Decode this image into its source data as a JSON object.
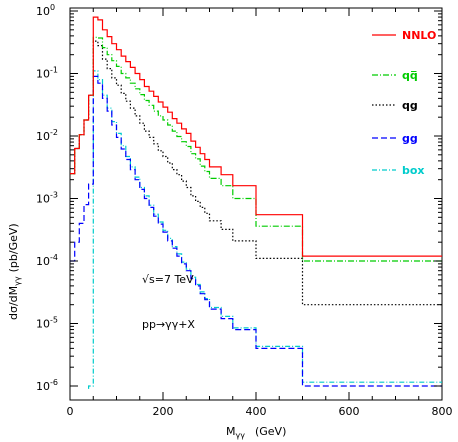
{
  "chart_data": {
    "type": "line",
    "step": true,
    "log_y": true,
    "xlabel": "M",
    "xlabel_sub": "γγ",
    "xlabel_unit": "(GeV)",
    "ylabel": "dσ/dM",
    "ylabel_sub": "γγ",
    "ylabel_unit": "(pb/GeV)",
    "xlim": [
      0,
      800
    ],
    "ylim": [
      5e-07,
      1
    ],
    "x_ticks": [
      {
        "value": 0,
        "label": "0"
      },
      {
        "value": 200,
        "label": "200"
      },
      {
        "value": 400,
        "label": "400"
      },
      {
        "value": 600,
        "label": "600"
      },
      {
        "value": 800,
        "label": "800"
      }
    ],
    "y_ticks": [
      {
        "value": 1e-06,
        "base": "10",
        "exp": "-6"
      },
      {
        "value": 1e-05,
        "base": "10",
        "exp": "-5"
      },
      {
        "value": 0.0001,
        "base": "10",
        "exp": "-4"
      },
      {
        "value": 0.001,
        "base": "10",
        "exp": "-3"
      },
      {
        "value": 0.01,
        "base": "10",
        "exp": "-2"
      },
      {
        "value": 0.1,
        "base": "10",
        "exp": "-1"
      },
      {
        "value": 1,
        "base": "10",
        "exp": "0"
      }
    ],
    "annotations": [
      "√s=7 TeV",
      "pp→γγ+X"
    ],
    "legend_position": "top-right",
    "bin_edges": [
      0,
      10,
      20,
      30,
      40,
      50,
      60,
      70,
      80,
      90,
      100,
      110,
      120,
      130,
      140,
      150,
      160,
      170,
      180,
      190,
      200,
      210,
      220,
      230,
      240,
      250,
      260,
      270,
      280,
      290,
      300,
      325,
      350,
      400,
      500,
      800
    ],
    "series": [
      {
        "name": "NNLO",
        "color": "#ff0000",
        "dash": "",
        "values": [
          0.0025,
          0.0063,
          0.0105,
          0.018,
          0.045,
          0.8,
          0.72,
          0.5,
          0.39,
          0.3,
          0.24,
          0.19,
          0.155,
          0.125,
          0.1,
          0.08,
          0.062,
          0.052,
          0.043,
          0.035,
          0.029,
          0.024,
          0.019,
          0.016,
          0.013,
          0.011,
          0.0083,
          0.0066,
          0.0052,
          0.0042,
          0.0032,
          0.0024,
          0.0016,
          0.00055,
          0.00012
        ]
      },
      {
        "name": "qq̅",
        "color": "#00cc00",
        "dash": "6,2,1,2",
        "values": [
          0.0025,
          0.0063,
          0.0105,
          0.018,
          0.045,
          0.38,
          0.37,
          0.26,
          0.2,
          0.16,
          0.13,
          0.1,
          0.085,
          0.07,
          0.057,
          0.046,
          0.037,
          0.031,
          0.025,
          0.021,
          0.018,
          0.015,
          0.012,
          0.0098,
          0.0081,
          0.0068,
          0.0052,
          0.0043,
          0.0033,
          0.0027,
          0.0021,
          0.0016,
          0.001,
          0.00036,
          0.0001
        ]
      },
      {
        "name": "qg",
        "color": "#000000",
        "dash": "1.5,2",
        "values": [
          0.0025,
          0.0063,
          0.0105,
          0.018,
          0.045,
          0.33,
          0.28,
          0.17,
          0.12,
          0.085,
          0.065,
          0.048,
          0.036,
          0.028,
          0.021,
          0.016,
          0.012,
          0.0095,
          0.0075,
          0.0058,
          0.0047,
          0.0037,
          0.0029,
          0.0024,
          0.0019,
          0.0015,
          0.0011,
          0.0009,
          0.00072,
          0.00058,
          0.00044,
          0.00032,
          0.00021,
          0.00011,
          2e-05
        ]
      },
      {
        "name": "gg",
        "color": "#0000ff",
        "dash": "6,3",
        "values": [
          0.0001,
          0.0002,
          0.0004,
          0.0008,
          0.0017,
          0.09,
          0.07,
          0.04,
          0.025,
          0.015,
          0.0095,
          0.0062,
          0.0042,
          0.0029,
          0.002,
          0.0014,
          0.001,
          0.00072,
          0.00052,
          0.00039,
          0.00029,
          0.00021,
          0.00016,
          0.00012,
          9e-05,
          7e-05,
          5.2e-05,
          4e-05,
          3e-05,
          2.4e-05,
          1.7e-05,
          1.2e-05,
          8e-06,
          4e-06,
          1e-06
        ]
      },
      {
        "name": "box",
        "color": "#00cccc",
        "dash": "5,2,1,2",
        "values": [
          null,
          null,
          null,
          null,
          1e-06,
          0.11,
          0.08,
          0.045,
          0.028,
          0.017,
          0.011,
          0.007,
          0.0047,
          0.0032,
          0.0022,
          0.0015,
          0.0011,
          0.00078,
          0.00056,
          0.00042,
          0.00031,
          0.00023,
          0.00017,
          0.00013,
          9.6e-05,
          7.4e-05,
          5.5e-05,
          4.2e-05,
          3.2e-05,
          2.5e-05,
          1.8e-05,
          1.3e-05,
          8.5e-06,
          4.3e-06,
          1.15e-06
        ]
      }
    ]
  }
}
